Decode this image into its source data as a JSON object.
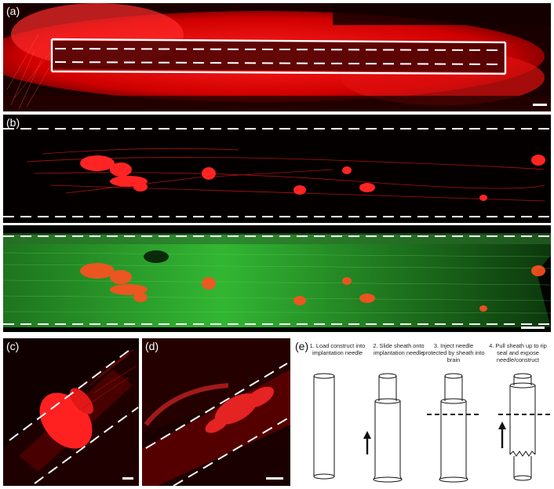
{
  "figure": {
    "panels": [
      {
        "id": "a",
        "label": "(a)"
      },
      {
        "id": "b",
        "label": "(b)"
      },
      {
        "id": "c",
        "label": "(c)"
      },
      {
        "id": "d",
        "label": "(d)"
      },
      {
        "id": "e",
        "label": "(e)"
      }
    ],
    "steps": [
      {
        "text": "1. Load construct into implantation needle"
      },
      {
        "text": "2. Slide sheath onto implantation needle"
      },
      {
        "text": "3. Inject needle protected by sheath into brain"
      },
      {
        "text": "4. Pull sheath up to rip seal and expose needle/construct"
      }
    ],
    "colors": {
      "red_channel": "#ff1a1a",
      "green_channel": "#2fbf2f",
      "background": "#000000",
      "annotation": "#ffffff"
    }
  }
}
